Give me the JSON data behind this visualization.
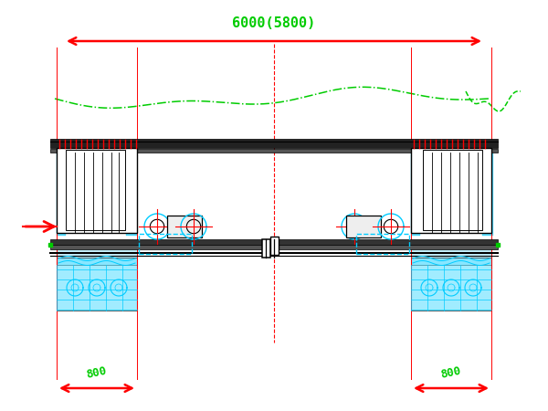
{
  "bg_color": "#ffffff",
  "title_text": "6000(5800)",
  "title_color": "#00cc00",
  "title_fontsize": 11,
  "red": "#ff0000",
  "black": "#000000",
  "cyan": "#00ccff",
  "green": "#00cc00",
  "fig_width": 6.0,
  "fig_height": 4.5,
  "dim_800_left_text": "800",
  "dim_800_right_text": "800"
}
